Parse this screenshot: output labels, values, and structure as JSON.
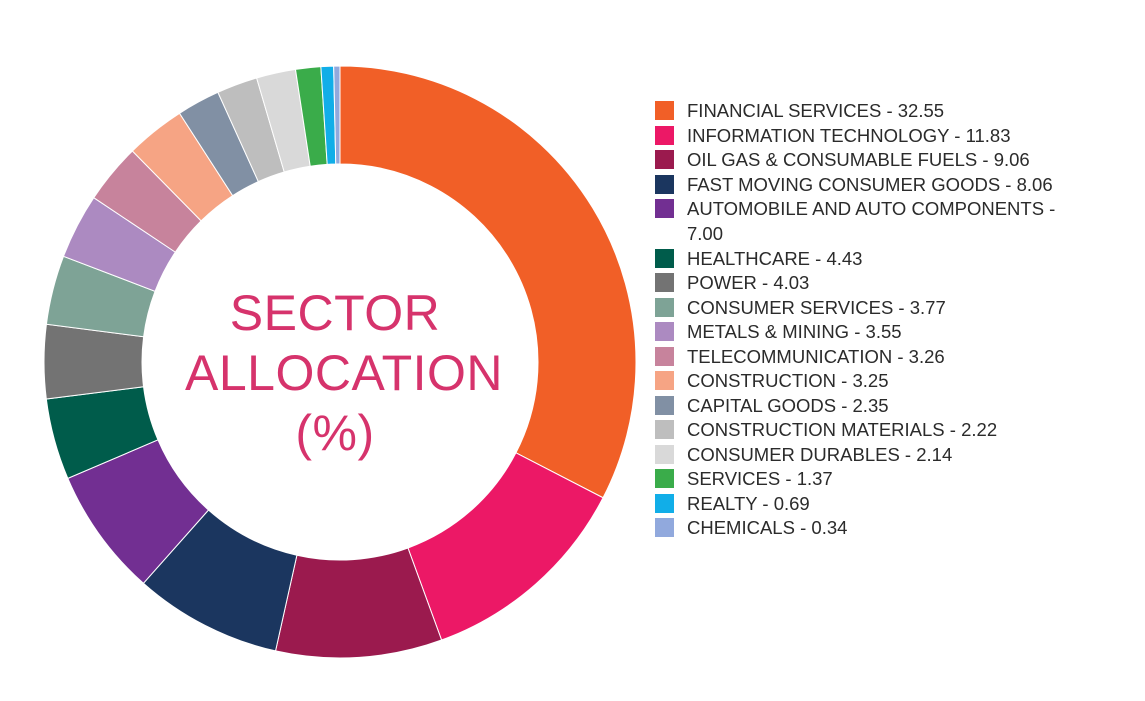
{
  "chart_data": {
    "type": "pie",
    "title_lines": [
      "SECTOR",
      "ALLOCATION",
      "(%)"
    ],
    "slices": [
      {
        "label": "FINANCIAL SERVICES",
        "value": 32.55,
        "value_text": "32.55",
        "color": "#f15f27"
      },
      {
        "label": "INFORMATION TECHNOLOGY",
        "value": 11.83,
        "value_text": "11.83",
        "color": "#ec1866"
      },
      {
        "label": "OIL GAS & CONSUMABLE FUELS",
        "value": 9.06,
        "value_text": "9.06",
        "color": "#9b1a4e"
      },
      {
        "label": "FAST MOVING CONSUMER GOODS",
        "value": 8.06,
        "value_text": "8.06",
        "color": "#1b365f"
      },
      {
        "label": "AUTOMOBILE AND AUTO COMPONENTS",
        "value": 7.0,
        "value_text": "7.00",
        "color": "#722f92"
      },
      {
        "label": "HEALTHCARE",
        "value": 4.43,
        "value_text": "4.43",
        "color": "#005c4b"
      },
      {
        "label": "POWER",
        "value": 4.03,
        "value_text": "4.03",
        "color": "#737373"
      },
      {
        "label": "CONSUMER SERVICES",
        "value": 3.77,
        "value_text": "3.77",
        "color": "#7ea396"
      },
      {
        "label": "METALS & MINING",
        "value": 3.55,
        "value_text": "3.55",
        "color": "#ac8ac1"
      },
      {
        "label": "TELECOMMUNICATION",
        "value": 3.26,
        "value_text": "3.26",
        "color": "#c7839c"
      },
      {
        "label": "CONSTRUCTION",
        "value": 3.25,
        "value_text": "3.25",
        "color": "#f6a484"
      },
      {
        "label": "CAPITAL GOODS",
        "value": 2.35,
        "value_text": "2.35",
        "color": "#8190a4"
      },
      {
        "label": "CONSTRUCTION MATERIALS",
        "value": 2.22,
        "value_text": "2.22",
        "color": "#bebebe"
      },
      {
        "label": "CONSUMER DURABLES",
        "value": 2.14,
        "value_text": "2.14",
        "color": "#d9d9d9"
      },
      {
        "label": "SERVICES",
        "value": 1.37,
        "value_text": "1.37",
        "color": "#3aac4a"
      },
      {
        "label": "REALTY",
        "value": 0.69,
        "value_text": "0.69",
        "color": "#11aee8"
      },
      {
        "label": "CHEMICALS",
        "value": 0.34,
        "value_text": "0.34",
        "color": "#91a9dd"
      }
    ],
    "legend_position": "right"
  }
}
